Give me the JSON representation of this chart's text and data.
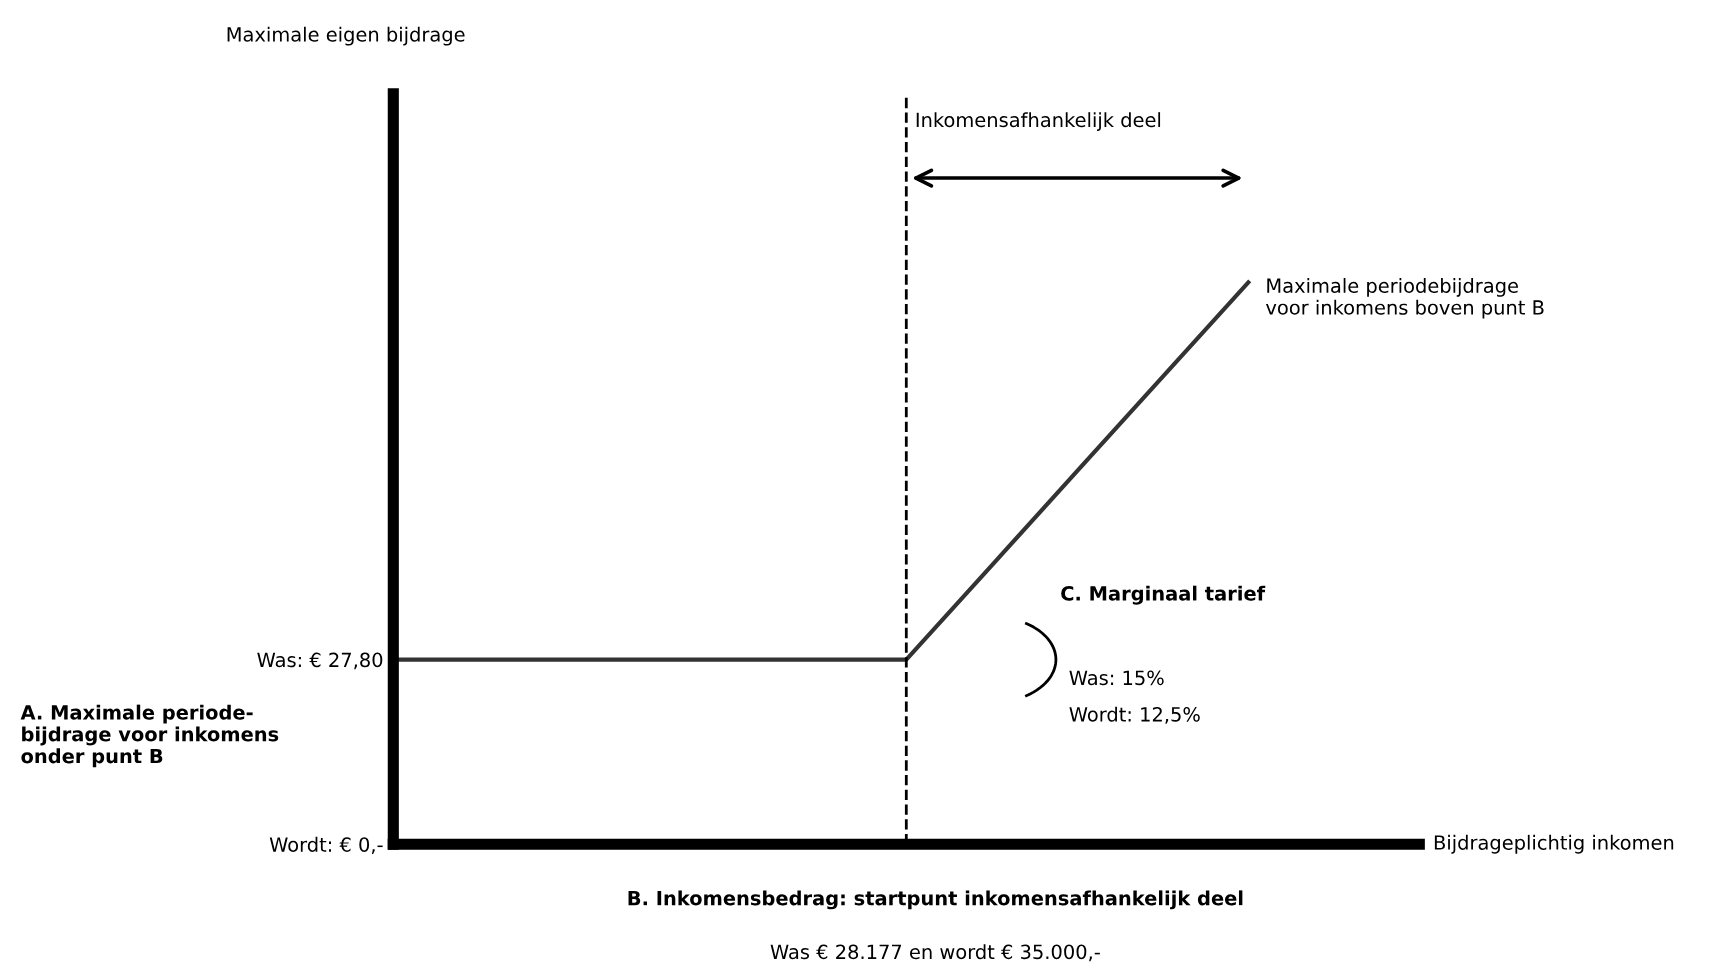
{
  "chart_data": {
    "type": "line",
    "ylabel": "Maximale eigen bijdrage",
    "xlabel": "Bijdrageplichtig inkomen",
    "categories": [
      null,
      null,
      null,
      null,
      null,
      null,
      null,
      null,
      null,
      null,
      null,
      null,
      null
    ],
    "series": [
      {
        "color": "#333333",
        "values": [
          27.8,
          27.8,
          27.8,
          27.8,
          27.8,
          27.8,
          27.8,
          42.0,
          56.2,
          70.4,
          84.6,
          null,
          null
        ]
      }
    ],
    "ylim": [
      0,
      113
    ],
    "yticks": [
      {
        "value": 0,
        "label": "Wordt: € 0,-"
      },
      {
        "value": 27.8,
        "label": "Was: € 27,80"
      }
    ],
    "tick_labels": "y",
    "annotations": [
      "Inkomensafhankelijk deel",
      "Maximale periodebijdrage\nvoor inkomens boven punt B",
      "C. Marginaal tarief",
      "Was: 15%",
      "Wordt: 12,5%",
      "A. Maximale periode-\nbijdrage voor inkomens\nonder punt B",
      "B. Inkomensbedrag: startpunt inkomensafhankelijk deel",
      "Was € 28.177 en wordt € 35.000,-"
    ],
    "grid": false,
    "legend": false,
    "marker": "none",
    "line_style": "solid"
  }
}
